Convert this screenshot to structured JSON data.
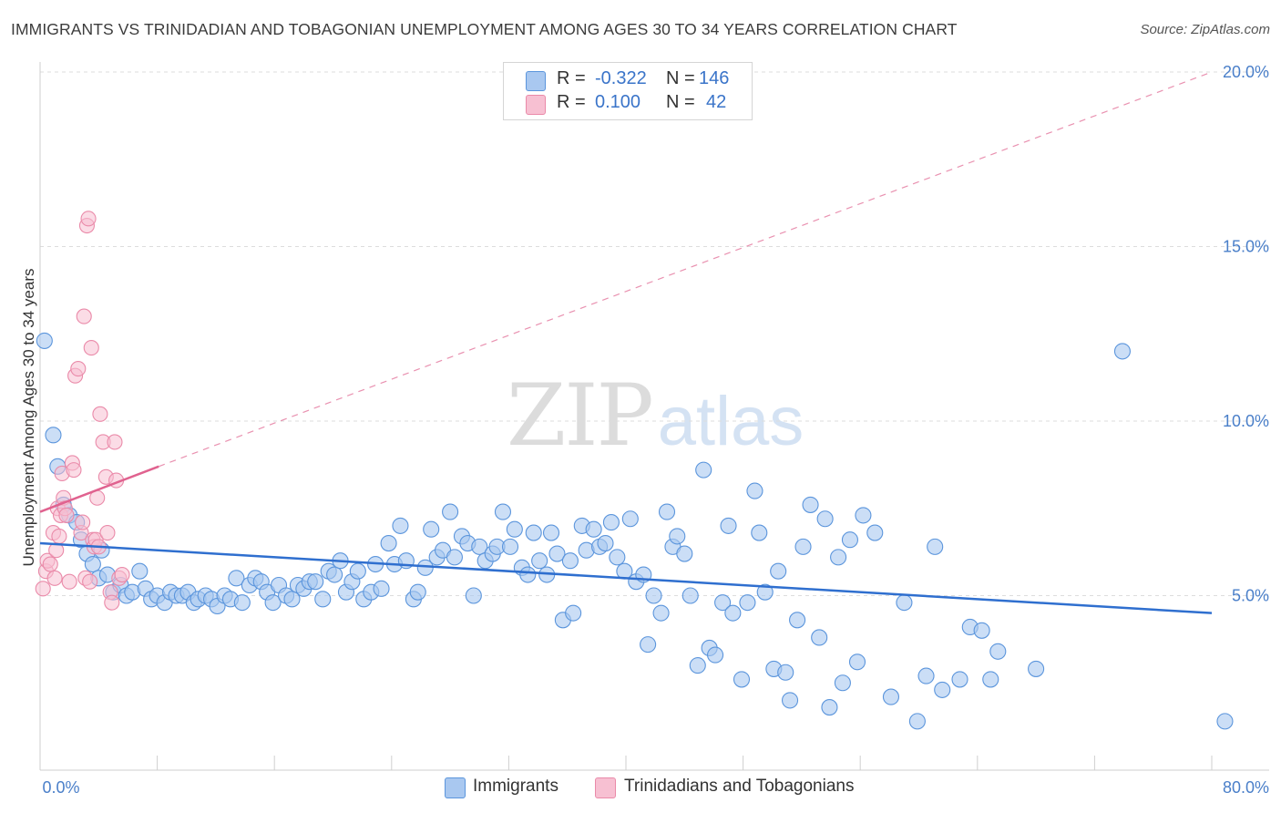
{
  "header": {
    "title": "IMMIGRANTS VS TRINIDADIAN AND TOBAGONIAN UNEMPLOYMENT AMONG AGES 30 TO 34 YEARS CORRELATION CHART",
    "source": "Source: ZipAtlas.com"
  },
  "watermark": {
    "zip": "ZIP",
    "atlas": "atlas"
  },
  "legend_top": {
    "rows": [
      {
        "r_label": "R =",
        "r_value": "-0.322",
        "n_label": "N =",
        "n_value": "146"
      },
      {
        "r_label": "R =",
        "r_value": "0.100",
        "n_label": "N =",
        "n_value": "42"
      }
    ]
  },
  "legend_bottom": {
    "items": [
      {
        "label": "Immigrants"
      },
      {
        "label": "Trinidadians and Tobagonians"
      }
    ]
  },
  "colors": {
    "immigrants_fill": "#a9c8f0",
    "immigrants_stroke": "#5b95dc",
    "immigrants_line": "#2f6fcf",
    "trinidad_fill": "#f7c0d2",
    "trinidad_stroke": "#ea8aa9",
    "trinidad_line": "#e0628f",
    "tick_text": "#4a7fc9",
    "grid": "#dddddd"
  },
  "chart_data": {
    "type": "scatter",
    "title": "IMMIGRANTS VS TRINIDADIAN AND TOBAGONIAN UNEMPLOYMENT AMONG AGES 30 TO 34 YEARS CORRELATION CHART",
    "xlabel": "",
    "ylabel": "Unemployment Among Ages 30 to 34 years",
    "xlim": [
      0,
      80
    ],
    "ylim": [
      0,
      20
    ],
    "x_ticks": [
      "0.0%",
      "80.0%"
    ],
    "y_ticks": [
      "5.0%",
      "10.0%",
      "15.0%",
      "20.0%"
    ],
    "y_tick_values": [
      5,
      10,
      15,
      20
    ],
    "grid": "horizontal dashed",
    "legend_position": "bottom",
    "series": [
      {
        "name": "Immigrants",
        "r": -0.322,
        "n": 146,
        "trend": {
          "x": [
            0,
            80
          ],
          "y": [
            6.5,
            4.5
          ],
          "style": "solid"
        },
        "points": [
          [
            0.3,
            12.3
          ],
          [
            0.9,
            9.6
          ],
          [
            1.2,
            8.7
          ],
          [
            1.6,
            7.6
          ],
          [
            2.0,
            7.3
          ],
          [
            2.5,
            7.1
          ],
          [
            2.8,
            6.6
          ],
          [
            3.2,
            6.2
          ],
          [
            3.6,
            5.9
          ],
          [
            4.0,
            5.5
          ],
          [
            4.2,
            6.3
          ],
          [
            4.6,
            5.6
          ],
          [
            5.0,
            5.1
          ],
          [
            5.5,
            5.3
          ],
          [
            5.9,
            5.0
          ],
          [
            6.3,
            5.1
          ],
          [
            6.8,
            5.7
          ],
          [
            7.2,
            5.2
          ],
          [
            7.6,
            4.9
          ],
          [
            8.0,
            5.0
          ],
          [
            8.5,
            4.8
          ],
          [
            8.9,
            5.1
          ],
          [
            9.3,
            5.0
          ],
          [
            9.7,
            5.0
          ],
          [
            10.1,
            5.1
          ],
          [
            10.5,
            4.8
          ],
          [
            10.8,
            4.9
          ],
          [
            11.3,
            5.0
          ],
          [
            11.7,
            4.9
          ],
          [
            12.1,
            4.7
          ],
          [
            12.6,
            5.0
          ],
          [
            13.0,
            4.9
          ],
          [
            13.4,
            5.5
          ],
          [
            13.8,
            4.8
          ],
          [
            14.3,
            5.3
          ],
          [
            14.7,
            5.5
          ],
          [
            15.1,
            5.4
          ],
          [
            15.5,
            5.1
          ],
          [
            15.9,
            4.8
          ],
          [
            16.3,
            5.3
          ],
          [
            16.8,
            5.0
          ],
          [
            17.2,
            4.9
          ],
          [
            17.6,
            5.3
          ],
          [
            18.0,
            5.2
          ],
          [
            18.4,
            5.4
          ],
          [
            18.8,
            5.4
          ],
          [
            19.3,
            4.9
          ],
          [
            19.7,
            5.7
          ],
          [
            20.1,
            5.6
          ],
          [
            20.5,
            6.0
          ],
          [
            20.9,
            5.1
          ],
          [
            21.3,
            5.4
          ],
          [
            21.7,
            5.7
          ],
          [
            22.1,
            4.9
          ],
          [
            22.6,
            5.1
          ],
          [
            22.9,
            5.9
          ],
          [
            23.3,
            5.2
          ],
          [
            23.8,
            6.5
          ],
          [
            24.2,
            5.9
          ],
          [
            24.6,
            7.0
          ],
          [
            25.0,
            6.0
          ],
          [
            25.5,
            4.9
          ],
          [
            25.8,
            5.1
          ],
          [
            26.3,
            5.8
          ],
          [
            26.7,
            6.9
          ],
          [
            27.1,
            6.1
          ],
          [
            27.5,
            6.3
          ],
          [
            28.0,
            7.4
          ],
          [
            28.3,
            6.1
          ],
          [
            28.8,
            6.7
          ],
          [
            29.2,
            6.5
          ],
          [
            29.6,
            5.0
          ],
          [
            30.0,
            6.4
          ],
          [
            30.4,
            6.0
          ],
          [
            30.9,
            6.2
          ],
          [
            31.2,
            6.4
          ],
          [
            31.6,
            7.4
          ],
          [
            32.1,
            6.4
          ],
          [
            32.4,
            6.9
          ],
          [
            32.9,
            5.8
          ],
          [
            33.3,
            5.6
          ],
          [
            33.7,
            6.8
          ],
          [
            34.1,
            6.0
          ],
          [
            34.6,
            5.6
          ],
          [
            34.9,
            6.8
          ],
          [
            35.3,
            6.2
          ],
          [
            35.7,
            4.3
          ],
          [
            36.2,
            6.0
          ],
          [
            36.4,
            4.5
          ],
          [
            37.0,
            7.0
          ],
          [
            37.3,
            6.3
          ],
          [
            37.8,
            6.9
          ],
          [
            38.2,
            6.4
          ],
          [
            38.6,
            6.5
          ],
          [
            39.0,
            7.1
          ],
          [
            39.4,
            6.1
          ],
          [
            39.9,
            5.7
          ],
          [
            40.3,
            7.2
          ],
          [
            40.7,
            5.4
          ],
          [
            41.2,
            5.6
          ],
          [
            41.5,
            3.6
          ],
          [
            41.9,
            5.0
          ],
          [
            42.4,
            4.5
          ],
          [
            42.8,
            7.4
          ],
          [
            43.2,
            6.4
          ],
          [
            43.5,
            6.7
          ],
          [
            44.0,
            6.2
          ],
          [
            44.4,
            5.0
          ],
          [
            44.9,
            3.0
          ],
          [
            45.3,
            8.6
          ],
          [
            45.7,
            3.5
          ],
          [
            46.1,
            3.3
          ],
          [
            46.6,
            4.8
          ],
          [
            47.0,
            7.0
          ],
          [
            47.3,
            4.5
          ],
          [
            47.9,
            2.6
          ],
          [
            48.3,
            4.8
          ],
          [
            48.8,
            8.0
          ],
          [
            49.1,
            6.8
          ],
          [
            49.5,
            5.1
          ],
          [
            50.1,
            2.9
          ],
          [
            50.4,
            5.7
          ],
          [
            50.9,
            2.8
          ],
          [
            51.2,
            2.0
          ],
          [
            51.7,
            4.3
          ],
          [
            52.1,
            6.4
          ],
          [
            52.6,
            7.6
          ],
          [
            53.2,
            3.8
          ],
          [
            53.6,
            7.2
          ],
          [
            53.9,
            1.8
          ],
          [
            54.5,
            6.1
          ],
          [
            54.8,
            2.5
          ],
          [
            55.3,
            6.6
          ],
          [
            55.8,
            3.1
          ],
          [
            56.2,
            7.3
          ],
          [
            57.0,
            6.8
          ],
          [
            58.1,
            2.1
          ],
          [
            59.0,
            4.8
          ],
          [
            59.9,
            1.4
          ],
          [
            60.5,
            2.7
          ],
          [
            61.1,
            6.4
          ],
          [
            61.6,
            2.3
          ],
          [
            62.8,
            2.6
          ],
          [
            63.5,
            4.1
          ],
          [
            64.3,
            4.0
          ],
          [
            64.9,
            2.6
          ],
          [
            65.4,
            3.4
          ],
          [
            68.0,
            2.9
          ],
          [
            73.9,
            12.0
          ],
          [
            80.9,
            1.4
          ]
        ]
      },
      {
        "name": "Trinidadians and Tobagonians",
        "r": 0.1,
        "n": 42,
        "trend": {
          "x": [
            0,
            8.1
          ],
          "y": [
            7.4,
            8.7
          ],
          "style": "solid",
          "extension": {
            "x": [
              8.1,
              80
            ],
            "y": [
              8.7,
              20.0
            ],
            "style": "dashed"
          }
        },
        "points": [
          [
            0.2,
            5.2
          ],
          [
            0.4,
            5.7
          ],
          [
            0.5,
            6.0
          ],
          [
            0.7,
            5.9
          ],
          [
            0.9,
            6.8
          ],
          [
            1.0,
            5.5
          ],
          [
            1.1,
            6.3
          ],
          [
            1.2,
            7.5
          ],
          [
            1.3,
            6.7
          ],
          [
            1.4,
            7.3
          ],
          [
            1.5,
            8.5
          ],
          [
            1.6,
            7.8
          ],
          [
            1.7,
            7.5
          ],
          [
            1.8,
            7.3
          ],
          [
            2.0,
            5.4
          ],
          [
            2.2,
            8.8
          ],
          [
            2.3,
            8.6
          ],
          [
            2.4,
            11.3
          ],
          [
            2.6,
            11.5
          ],
          [
            2.8,
            6.8
          ],
          [
            2.9,
            7.1
          ],
          [
            3.0,
            13.0
          ],
          [
            3.1,
            5.5
          ],
          [
            3.2,
            15.6
          ],
          [
            3.3,
            15.8
          ],
          [
            3.4,
            5.4
          ],
          [
            3.5,
            12.1
          ],
          [
            3.6,
            6.6
          ],
          [
            3.7,
            6.4
          ],
          [
            3.8,
            6.6
          ],
          [
            3.9,
            7.8
          ],
          [
            4.0,
            6.4
          ],
          [
            4.1,
            10.2
          ],
          [
            4.3,
            9.4
          ],
          [
            4.5,
            8.4
          ],
          [
            4.6,
            6.8
          ],
          [
            4.8,
            5.1
          ],
          [
            4.9,
            4.8
          ],
          [
            5.1,
            9.4
          ],
          [
            5.2,
            8.3
          ],
          [
            5.4,
            5.5
          ],
          [
            5.6,
            5.6
          ]
        ]
      }
    ]
  }
}
